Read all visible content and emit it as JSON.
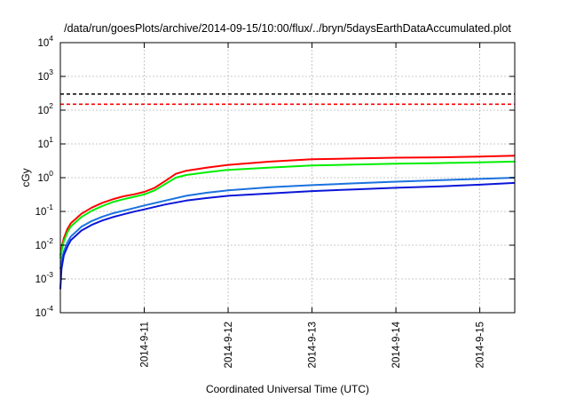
{
  "chart_data": {
    "type": "line",
    "title": "/data/run/goesPlots/archive/2014-09-15/10:00/flux/../bryn/5daysEarthDataAccumulated.plot",
    "xlabel": "Coordinated Universal Time (UTC)",
    "ylabel": "cGy",
    "y_scale": "log",
    "ylim": [
      0.0001,
      10000
    ],
    "xlim": [
      "2014-09-10T00:00",
      "2014-09-15T10:00"
    ],
    "grid": true,
    "legend": "none",
    "x_ticks": [
      {
        "x": "2014-09-11T00:00",
        "label": "2014-9-11"
      },
      {
        "x": "2014-09-12T00:00",
        "label": "2014-9-12"
      },
      {
        "x": "2014-09-13T00:00",
        "label": "2014-9-13"
      },
      {
        "x": "2014-09-14T00:00",
        "label": "2014-9-14"
      },
      {
        "x": "2014-09-15T00:00",
        "label": "2014-9-15"
      }
    ],
    "y_ticks": [
      {
        "y": 0.0001,
        "base": "10",
        "exp": "-4"
      },
      {
        "y": 0.001,
        "base": "10",
        "exp": "-3"
      },
      {
        "y": 0.01,
        "base": "10",
        "exp": "-2"
      },
      {
        "y": 0.1,
        "base": "10",
        "exp": "-1"
      },
      {
        "y": 1,
        "base": "10",
        "exp": "0"
      },
      {
        "y": 10,
        "base": "10",
        "exp": "1"
      },
      {
        "y": 100,
        "base": "10",
        "exp": "2"
      },
      {
        "y": 1000,
        "base": "10",
        "exp": "3"
      },
      {
        "y": 10000,
        "base": "10",
        "exp": "4"
      }
    ],
    "reference_lines": [
      {
        "y": 300,
        "color": "#000000",
        "style": "dashed"
      },
      {
        "y": 150,
        "color": "#ff0000",
        "style": "dashed"
      }
    ],
    "series": [
      {
        "color": "#ff0000",
        "points": [
          [
            "2014-09-10T00:00",
            0.005
          ],
          [
            "2014-09-10T00:30",
            0.01
          ],
          [
            "2014-09-10T01:00",
            0.016
          ],
          [
            "2014-09-10T02:00",
            0.03
          ],
          [
            "2014-09-10T03:00",
            0.045
          ],
          [
            "2014-09-10T06:00",
            0.085
          ],
          [
            "2014-09-10T09:00",
            0.13
          ],
          [
            "2014-09-10T12:00",
            0.18
          ],
          [
            "2014-09-10T15:00",
            0.23
          ],
          [
            "2014-09-10T18:00",
            0.28
          ],
          [
            "2014-09-10T21:00",
            0.32
          ],
          [
            "2014-09-11T00:00",
            0.38
          ],
          [
            "2014-09-11T03:00",
            0.5
          ],
          [
            "2014-09-11T06:00",
            0.8
          ],
          [
            "2014-09-11T09:00",
            1.3
          ],
          [
            "2014-09-11T12:00",
            1.6
          ],
          [
            "2014-09-11T18:00",
            2.0
          ],
          [
            "2014-09-12T00:00",
            2.4
          ],
          [
            "2014-09-12T12:00",
            3.0
          ],
          [
            "2014-09-13T00:00",
            3.5
          ],
          [
            "2014-09-13T12:00",
            3.7
          ],
          [
            "2014-09-14T00:00",
            3.9
          ],
          [
            "2014-09-14T12:00",
            4.0
          ],
          [
            "2014-09-15T00:00",
            4.2
          ],
          [
            "2014-09-15T10:00",
            4.5
          ]
        ]
      },
      {
        "color": "#00ee00",
        "points": [
          [
            "2014-09-10T00:00",
            0.004
          ],
          [
            "2014-09-10T00:30",
            0.008
          ],
          [
            "2014-09-10T01:00",
            0.013
          ],
          [
            "2014-09-10T02:00",
            0.024
          ],
          [
            "2014-09-10T03:00",
            0.036
          ],
          [
            "2014-09-10T06:00",
            0.068
          ],
          [
            "2014-09-10T09:00",
            0.105
          ],
          [
            "2014-09-10T12:00",
            0.145
          ],
          [
            "2014-09-10T15:00",
            0.19
          ],
          [
            "2014-09-10T18:00",
            0.23
          ],
          [
            "2014-09-10T21:00",
            0.27
          ],
          [
            "2014-09-11T00:00",
            0.32
          ],
          [
            "2014-09-11T03:00",
            0.42
          ],
          [
            "2014-09-11T06:00",
            0.65
          ],
          [
            "2014-09-11T09:00",
            1.0
          ],
          [
            "2014-09-11T12:00",
            1.2
          ],
          [
            "2014-09-11T18:00",
            1.45
          ],
          [
            "2014-09-12T00:00",
            1.7
          ],
          [
            "2014-09-12T12:00",
            2.0
          ],
          [
            "2014-09-13T00:00",
            2.3
          ],
          [
            "2014-09-13T12:00",
            2.45
          ],
          [
            "2014-09-14T00:00",
            2.6
          ],
          [
            "2014-09-14T12:00",
            2.7
          ],
          [
            "2014-09-15T00:00",
            2.85
          ],
          [
            "2014-09-15T10:00",
            3.0
          ]
        ]
      },
      {
        "color": "#1a72e0",
        "points": [
          [
            "2014-09-10T00:00",
            0.002
          ],
          [
            "2014-09-10T00:30",
            0.004
          ],
          [
            "2014-09-10T01:00",
            0.0065
          ],
          [
            "2014-09-10T02:00",
            0.012
          ],
          [
            "2014-09-10T03:00",
            0.018
          ],
          [
            "2014-09-10T06:00",
            0.035
          ],
          [
            "2014-09-10T09:00",
            0.052
          ],
          [
            "2014-09-10T12:00",
            0.07
          ],
          [
            "2014-09-10T15:00",
            0.088
          ],
          [
            "2014-09-10T18:00",
            0.105
          ],
          [
            "2014-09-10T21:00",
            0.125
          ],
          [
            "2014-09-11T00:00",
            0.15
          ],
          [
            "2014-09-11T06:00",
            0.21
          ],
          [
            "2014-09-11T12:00",
            0.29
          ],
          [
            "2014-09-11T18:00",
            0.36
          ],
          [
            "2014-09-12T00:00",
            0.42
          ],
          [
            "2014-09-12T12:00",
            0.52
          ],
          [
            "2014-09-13T00:00",
            0.6
          ],
          [
            "2014-09-13T12:00",
            0.68
          ],
          [
            "2014-09-14T00:00",
            0.76
          ],
          [
            "2014-09-14T12:00",
            0.84
          ],
          [
            "2014-09-15T00:00",
            0.92
          ],
          [
            "2014-09-15T10:00",
            1.0
          ]
        ]
      },
      {
        "color": "#0a16d8",
        "points": [
          [
            "2014-09-10T00:00",
            0.0005
          ],
          [
            "2014-09-10T00:20",
            0.002
          ],
          [
            "2014-09-10T01:00",
            0.005
          ],
          [
            "2014-09-10T02:00",
            0.009
          ],
          [
            "2014-09-10T03:00",
            0.014
          ],
          [
            "2014-09-10T06:00",
            0.027
          ],
          [
            "2014-09-10T09:00",
            0.04
          ],
          [
            "2014-09-10T12:00",
            0.054
          ],
          [
            "2014-09-10T15:00",
            0.068
          ],
          [
            "2014-09-10T18:00",
            0.082
          ],
          [
            "2014-09-10T21:00",
            0.098
          ],
          [
            "2014-09-11T00:00",
            0.115
          ],
          [
            "2014-09-11T06:00",
            0.16
          ],
          [
            "2014-09-11T12:00",
            0.21
          ],
          [
            "2014-09-11T18:00",
            0.25
          ],
          [
            "2014-09-12T00:00",
            0.29
          ],
          [
            "2014-09-12T12:00",
            0.34
          ],
          [
            "2014-09-13T00:00",
            0.4
          ],
          [
            "2014-09-13T12:00",
            0.45
          ],
          [
            "2014-09-14T00:00",
            0.5
          ],
          [
            "2014-09-14T12:00",
            0.55
          ],
          [
            "2014-09-15T00:00",
            0.62
          ],
          [
            "2014-09-15T10:00",
            0.7
          ]
        ]
      }
    ]
  }
}
